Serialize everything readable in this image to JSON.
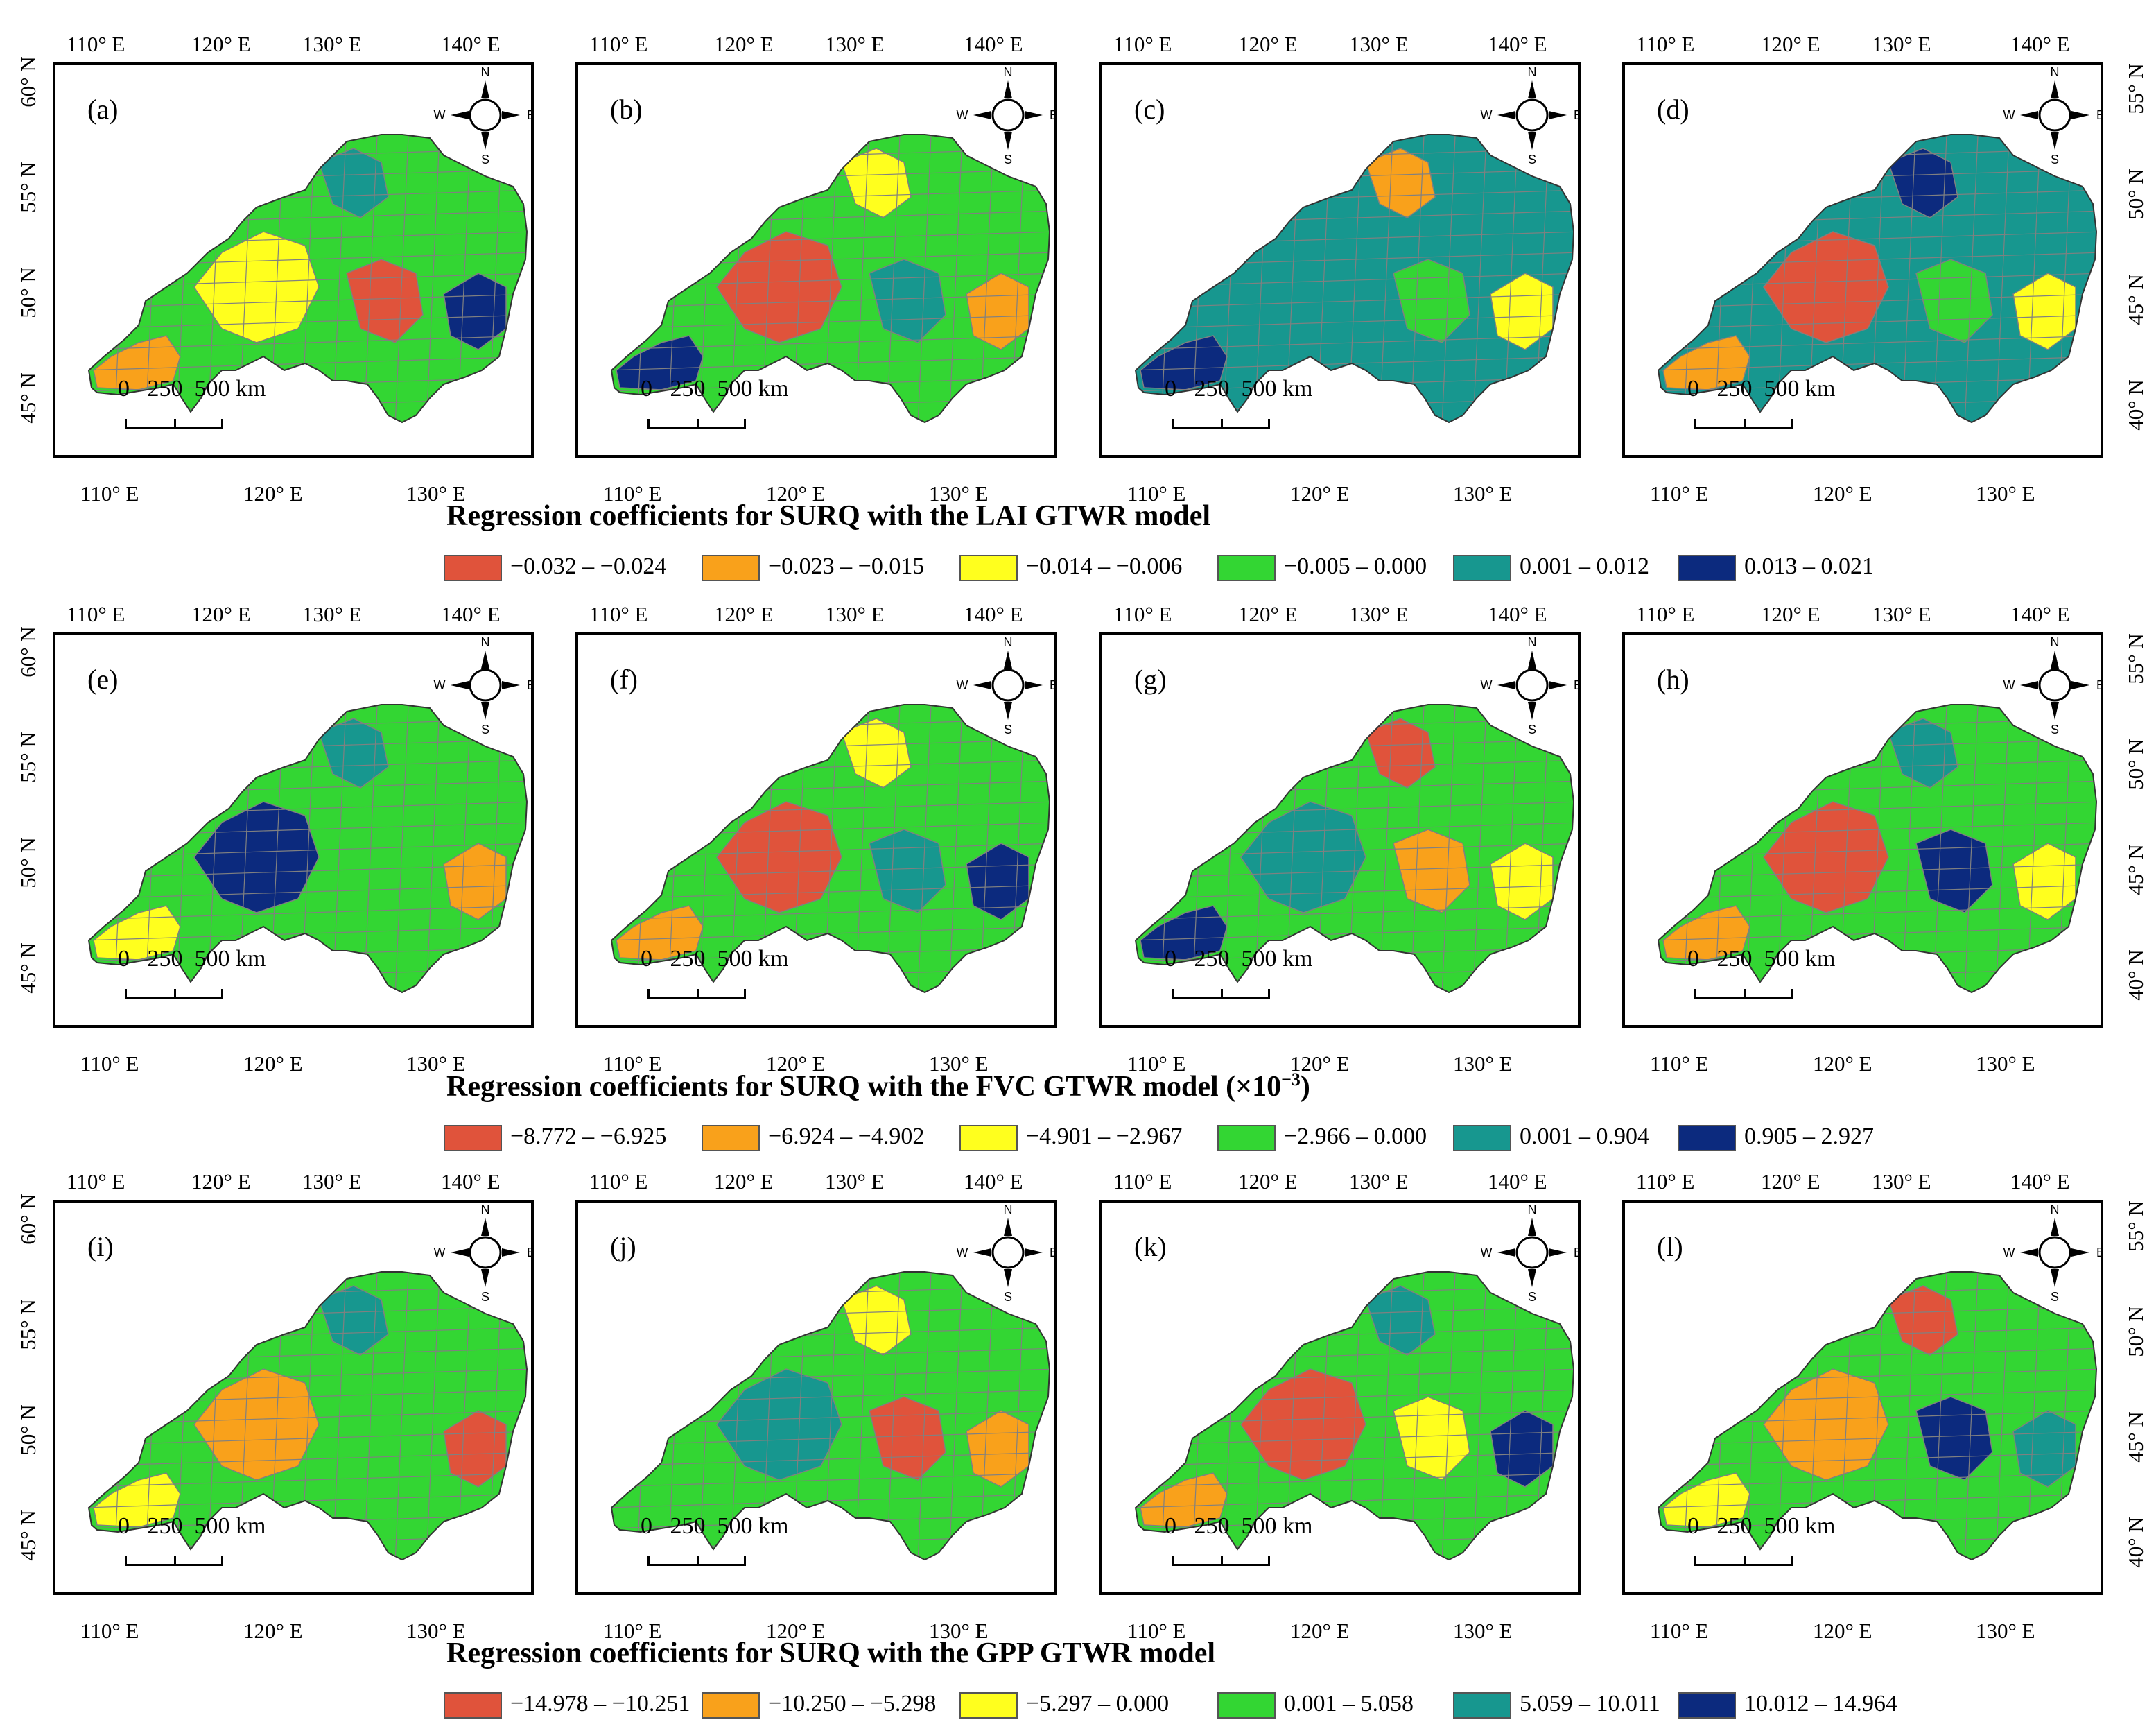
{
  "figure": {
    "colors": {
      "red": "#e0533b",
      "orange": "#f9a11b",
      "yellow": "#ffff1e",
      "green": "#33d633",
      "teal": "#17978f",
      "navy": "#0c2a7e",
      "boundary": "#808080"
    },
    "axis_labels": {
      "top": [
        "110° E",
        "120° E",
        "130° E",
        "140° E"
      ],
      "bottom": [
        "110° E",
        "120° E",
        "130° E"
      ],
      "left": [
        "60° N",
        "55° N",
        "50° N",
        "45° N"
      ],
      "right": [
        "55° N",
        "50° N",
        "45° N",
        "40° N"
      ]
    },
    "compass": {
      "n": "N",
      "s": "S",
      "e": "E",
      "w": "W"
    },
    "scale_bar": {
      "text": "0   250  500 km"
    },
    "sections": [
      {
        "title": "Regression coefficients  for SURQ with the LAI GTWR model",
        "title_sup": "",
        "legend": [
          {
            "label": "−0.032 – −0.024",
            "color": "red"
          },
          {
            "label": "−0.023 – −0.015",
            "color": "orange"
          },
          {
            "label": "−0.014 – −0.006",
            "color": "yellow"
          },
          {
            "label": "−0.005 – 0.000",
            "color": "green"
          },
          {
            "label": "0.001 – 0.012",
            "color": "teal"
          },
          {
            "label": "0.013 – 0.021",
            "color": "navy"
          }
        ],
        "panels": [
          {
            "label": "(a)",
            "base": "green",
            "zones": [
              "orange",
              "yellow",
              "teal",
              "navy",
              "red"
            ]
          },
          {
            "label": "(b)",
            "base": "green",
            "zones": [
              "red",
              "yellow",
              "orange",
              "teal",
              "navy"
            ]
          },
          {
            "label": "(c)",
            "base": "teal",
            "zones": [
              "orange",
              "yellow",
              "green",
              "navy"
            ]
          },
          {
            "label": "(d)",
            "base": "teal",
            "zones": [
              "yellow",
              "green",
              "orange",
              "red",
              "navy"
            ]
          }
        ]
      },
      {
        "title": "Regression coefficients  for SURQ with the FVC GTWR model (×10",
        "title_sup": "−3",
        "title_end": ")",
        "legend": [
          {
            "label": "−8.772 – −6.925",
            "color": "red"
          },
          {
            "label": "−6.924 – −4.902",
            "color": "orange"
          },
          {
            "label": "−4.901 – −2.967",
            "color": "yellow"
          },
          {
            "label": "−2.966 – 0.000",
            "color": "green"
          },
          {
            "label": "0.001 – 0.904",
            "color": "teal"
          },
          {
            "label": "0.905 – 2.927",
            "color": "navy"
          }
        ],
        "panels": [
          {
            "label": "(e)",
            "base": "green",
            "zones": [
              "yellow",
              "navy",
              "teal",
              "orange"
            ]
          },
          {
            "label": "(f)",
            "base": "green",
            "zones": [
              "red",
              "yellow",
              "navy",
              "teal",
              "orange"
            ]
          },
          {
            "label": "(g)",
            "base": "green",
            "zones": [
              "red",
              "yellow",
              "orange",
              "navy",
              "teal"
            ]
          },
          {
            "label": "(h)",
            "base": "green",
            "zones": [
              "yellow",
              "navy",
              "orange",
              "red",
              "teal"
            ]
          }
        ]
      },
      {
        "title": "Regression coefficients for SURQ with the GPP GTWR model",
        "title_sup": "",
        "legend": [
          {
            "label": "−14.978 – −10.251",
            "color": "red"
          },
          {
            "label": "−10.250 – −5.298",
            "color": "orange"
          },
          {
            "label": "−5.297 – 0.000",
            "color": "yellow"
          },
          {
            "label": "0.001 – 5.058",
            "color": "green"
          },
          {
            "label": "5.059 – 10.011",
            "color": "teal"
          },
          {
            "label": "10.012 – 14.964",
            "color": "navy"
          }
        ],
        "panels": [
          {
            "label": "(i)",
            "base": "green",
            "zones": [
              "yellow",
              "orange",
              "teal",
              "red"
            ]
          },
          {
            "label": "(j)",
            "base": "green",
            "zones": [
              "teal",
              "yellow",
              "orange",
              "red"
            ]
          },
          {
            "label": "(k)",
            "base": "green",
            "zones": [
              "teal",
              "navy",
              "yellow",
              "orange",
              "red"
            ]
          },
          {
            "label": "(l)",
            "base": "green",
            "zones": [
              "teal",
              "navy",
              "yellow",
              "orange",
              "red"
            ]
          }
        ]
      }
    ]
  }
}
